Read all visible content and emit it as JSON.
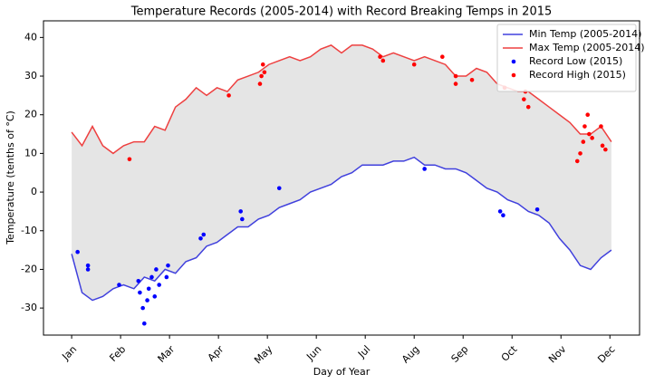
{
  "chart_data": {
    "type": "line",
    "title": "Temperature Records (2005-2014) with Record Breaking Temps in 2015",
    "xlabel": "Day of Year",
    "ylabel": "Temperature (tenths of °C)",
    "xlim": [
      -19,
      383
    ],
    "ylim": [
      -37,
      44.3
    ],
    "xticks": [
      {
        "value": 0,
        "label": "Jan"
      },
      {
        "value": 33,
        "label": "Feb"
      },
      {
        "value": 66,
        "label": "Mar"
      },
      {
        "value": 99,
        "label": "Apr"
      },
      {
        "value": 132,
        "label": "May"
      },
      {
        "value": 165,
        "label": "Jun"
      },
      {
        "value": 198,
        "label": "Jul"
      },
      {
        "value": 231,
        "label": "Aug"
      },
      {
        "value": 264,
        "label": "Sep"
      },
      {
        "value": 297,
        "label": "Oct"
      },
      {
        "value": 330,
        "label": "Nov"
      },
      {
        "value": 363,
        "label": "Dec"
      }
    ],
    "yticks": [
      -30,
      -20,
      -10,
      0,
      10,
      20,
      30,
      40
    ],
    "fill_between": "#e5e5e5",
    "legend": "upper right",
    "x": [
      0,
      7,
      14,
      21,
      28,
      35,
      42,
      49,
      56,
      63,
      70,
      77,
      84,
      91,
      98,
      105,
      112,
      119,
      126,
      133,
      140,
      147,
      154,
      161,
      168,
      175,
      182,
      189,
      196,
      203,
      210,
      217,
      224,
      231,
      238,
      245,
      252,
      259,
      266,
      273,
      280,
      287,
      294,
      301,
      308,
      315,
      322,
      329,
      336,
      343,
      350,
      357,
      364
    ],
    "series": [
      {
        "name": "Min Temp (2005-2014)",
        "type": "line",
        "color": "#4040dd",
        "values": [
          -16,
          -26,
          -28,
          -27,
          -25,
          -24,
          -25,
          -22,
          -23,
          -20,
          -21,
          -18,
          -17,
          -14,
          -13,
          -11,
          -9,
          -9,
          -7,
          -6,
          -4,
          -3,
          -2,
          0,
          1,
          2,
          4,
          5,
          7,
          7,
          7,
          8,
          8,
          9,
          7,
          7,
          6,
          6,
          5,
          3,
          1,
          0,
          -2,
          -3,
          -5,
          -6,
          -8,
          -12,
          -15,
          -19,
          -20,
          -17,
          -15
        ]
      },
      {
        "name": "Max Temp (2005-2014)",
        "type": "line",
        "color": "#ee4040",
        "values": [
          15.5,
          12,
          17,
          12,
          10,
          12,
          13,
          13,
          17,
          16,
          22,
          24,
          27,
          25,
          27,
          26,
          29,
          30,
          31,
          33,
          34,
          35,
          34,
          35,
          37,
          38,
          36,
          38,
          38,
          37,
          35,
          36,
          35,
          34,
          35,
          34,
          33,
          30,
          30,
          32,
          31,
          28,
          27,
          26,
          26,
          24,
          22,
          20,
          18,
          15,
          15,
          17,
          13
        ]
      },
      {
        "name": "Record Low (2015)",
        "type": "scatter",
        "color": "#0000ff",
        "x": [
          4,
          11,
          11,
          32,
          45,
          46,
          48,
          49,
          51,
          52,
          54,
          56,
          57,
          59,
          64,
          65,
          87,
          89,
          114,
          115,
          140,
          238,
          289,
          291,
          314
        ],
        "values": [
          -15.5,
          -19,
          -20,
          -24,
          -23,
          -26,
          -30,
          -34,
          -28,
          -25,
          -22,
          -27,
          -20,
          -24,
          -22,
          -19,
          -12,
          -11,
          -5,
          -7,
          1,
          6,
          -5,
          -6,
          -4.5
        ]
      },
      {
        "name": "Record High (2015)",
        "type": "scatter",
        "color": "#ff0000",
        "x": [
          39,
          106,
          127,
          128,
          129,
          130,
          208,
          210,
          231,
          250,
          259,
          259,
          270,
          292,
          305,
          306,
          308,
          341,
          343,
          345,
          346,
          348,
          349,
          351,
          357,
          358,
          360
        ],
        "values": [
          8.5,
          25,
          28,
          30,
          33,
          31,
          35,
          34,
          33,
          35,
          30,
          28,
          29,
          27,
          24,
          26,
          22,
          8,
          10,
          13,
          17,
          20,
          15,
          14,
          17,
          12,
          11
        ]
      }
    ]
  }
}
